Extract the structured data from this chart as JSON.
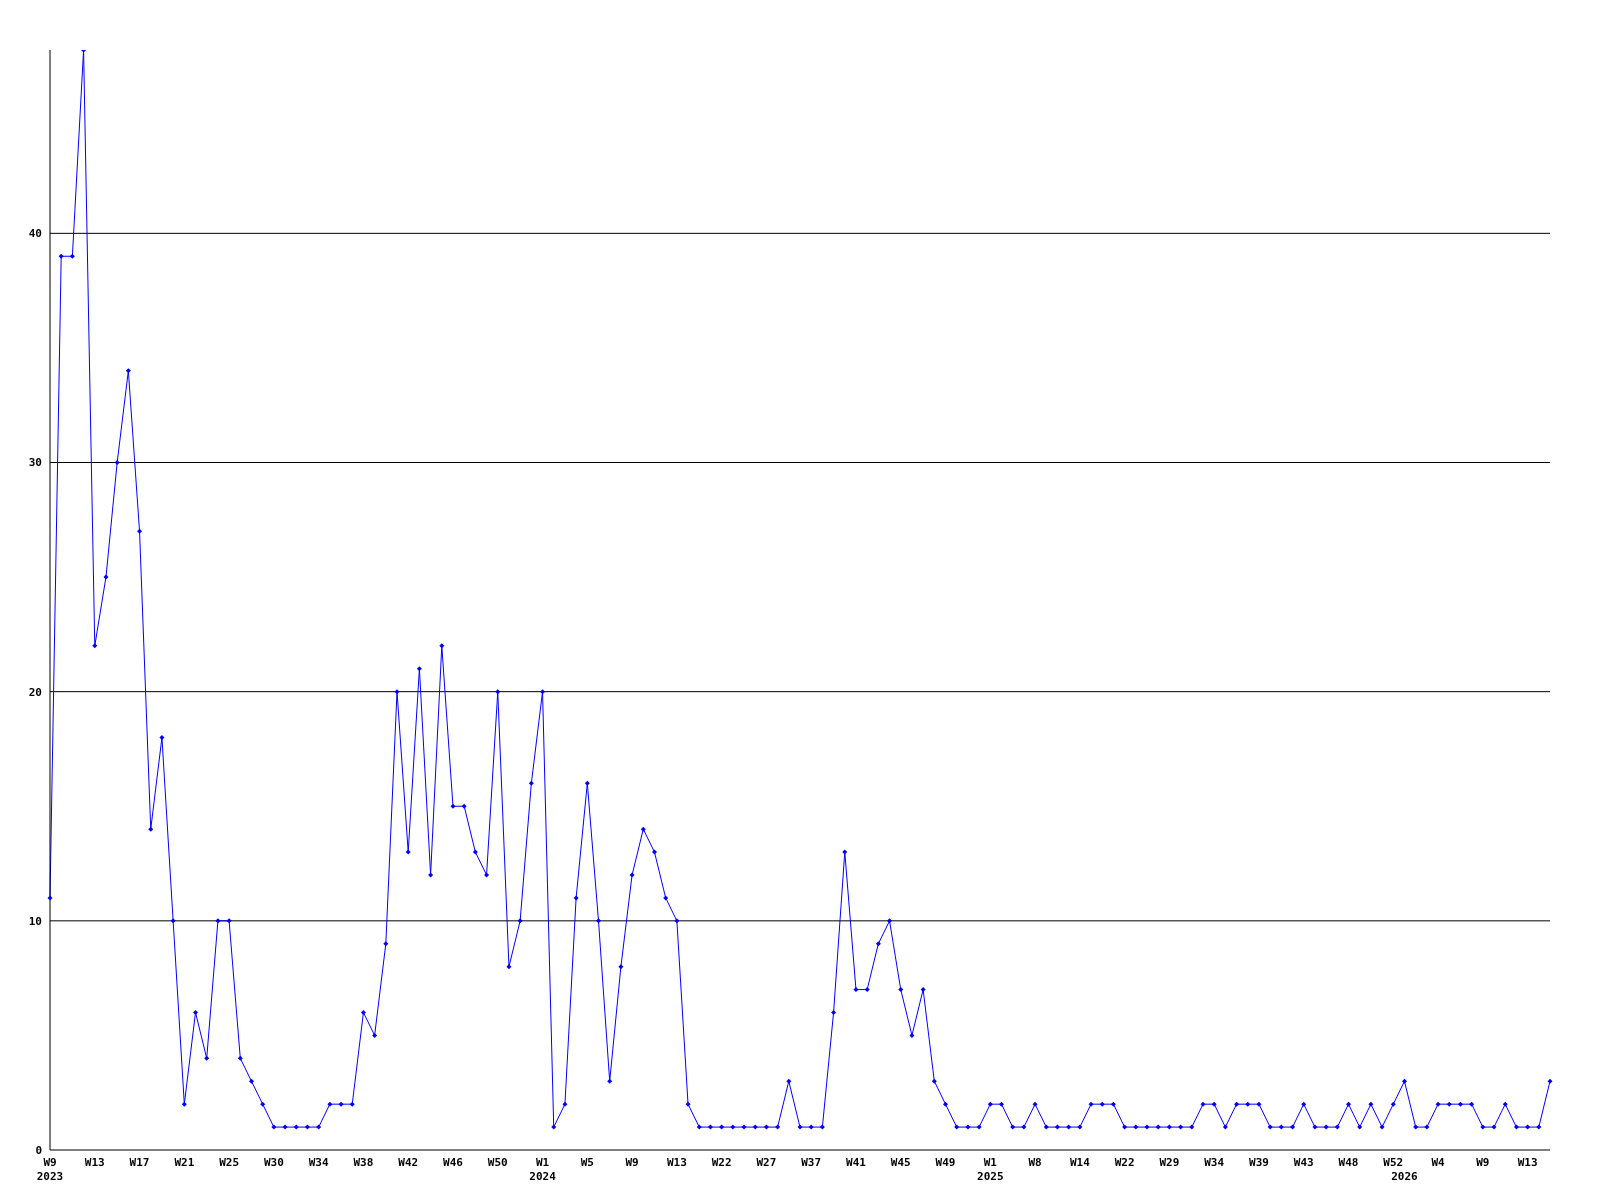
{
  "chart_data": {
    "type": "line",
    "categories": [
      "W9\n2023",
      null,
      null,
      null,
      "W13",
      null,
      null,
      null,
      "W17",
      null,
      null,
      null,
      "W21",
      null,
      null,
      null,
      "W25",
      null,
      null,
      null,
      "W30",
      null,
      null,
      null,
      "W34",
      null,
      null,
      null,
      "W38",
      null,
      null,
      null,
      "W42",
      null,
      null,
      null,
      "W46",
      null,
      null,
      null,
      "W50",
      null,
      null,
      null,
      "W1\n2024",
      null,
      null,
      null,
      "W5",
      null,
      null,
      null,
      "W9",
      null,
      null,
      null,
      "W13",
      null,
      null,
      null,
      "W22",
      null,
      null,
      null,
      "W27",
      null,
      null,
      null,
      "W37",
      null,
      null,
      null,
      "W41",
      null,
      null,
      null,
      "W45",
      null,
      null,
      null,
      "W49",
      null,
      null,
      null,
      "W1\n2025",
      null,
      null,
      null,
      "W8",
      null,
      null,
      null,
      "W14",
      null,
      null,
      null,
      "W22",
      null,
      null,
      null,
      "W29",
      null,
      null,
      null,
      "W34",
      null,
      null,
      null,
      "W39",
      null,
      null,
      null,
      "W43",
      null,
      null,
      null,
      "W48",
      null,
      null,
      null,
      "W52",
      "\n2026",
      null,
      null,
      "W4",
      null,
      null,
      null,
      "W9",
      null,
      null,
      null,
      "W13",
      null,
      null
    ],
    "series": [
      {
        "color": "#0000ff",
        "values": [
          11,
          39,
          39,
          48,
          22,
          25,
          30,
          34,
          27,
          14,
          18,
          10,
          2,
          6,
          4,
          10,
          10,
          4,
          3,
          2,
          1,
          1,
          1,
          1,
          1,
          2,
          2,
          2,
          6,
          5,
          9,
          20,
          13,
          21,
          12,
          22,
          15,
          15,
          13,
          12,
          20,
          8,
          10,
          16,
          20,
          1,
          2,
          11,
          16,
          10,
          3,
          8,
          12,
          14,
          13,
          11,
          10,
          2,
          1,
          1,
          1,
          1,
          1,
          1,
          1,
          1,
          3,
          1,
          1,
          1,
          6,
          13,
          7,
          7,
          9,
          10,
          7,
          5,
          7,
          3,
          2,
          1,
          1,
          1,
          2,
          2,
          1,
          1,
          2,
          1,
          1,
          1,
          1,
          2,
          2,
          2,
          1,
          1,
          1,
          1,
          1,
          1,
          1,
          2,
          2,
          1,
          2,
          2,
          2,
          1,
          1,
          1,
          2,
          1,
          1,
          1,
          2,
          1,
          2,
          1,
          2,
          3,
          1,
          1,
          2,
          2,
          2,
          2,
          1,
          1,
          2,
          1,
          1,
          1,
          3
        ]
      }
    ],
    "ylim": [
      0,
      48
    ],
    "yticks": [
      0,
      10,
      20,
      30,
      40
    ],
    "grid": "y",
    "marker": "diamond",
    "line_style": "solid"
  }
}
